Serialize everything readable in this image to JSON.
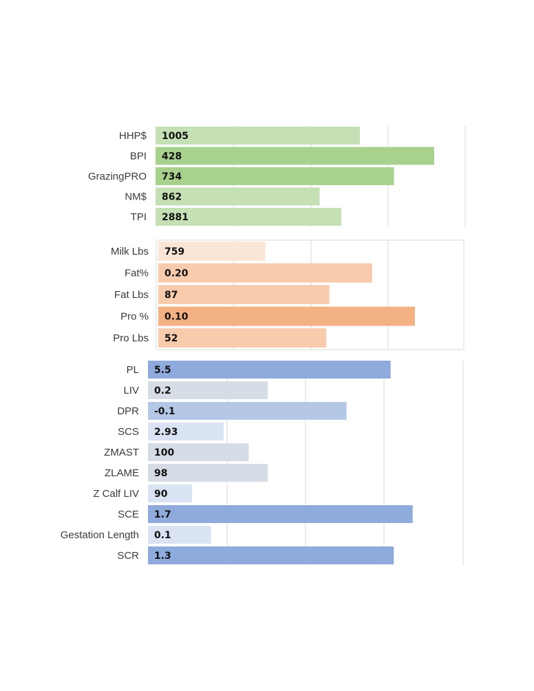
{
  "chart_data": [
    {
      "type": "bar",
      "orientation": "horizontal",
      "grid": true,
      "categories": [
        "HHP$",
        "BPI",
        "GrazingPRO",
        "NM$",
        "TPI"
      ],
      "values": [
        1005,
        428,
        734,
        862,
        2881
      ],
      "bar_length_fraction": [
        0.66,
        0.9,
        0.77,
        0.53,
        0.6
      ],
      "value_labels": [
        "1005",
        "428",
        "734",
        "862",
        "2881"
      ],
      "colors": [
        "#c5e0b4",
        "#a9d18e",
        "#a9d18e",
        "#c5e0b4",
        "#c5e0b4"
      ]
    },
    {
      "type": "bar",
      "orientation": "horizontal",
      "grid": true,
      "categories": [
        "Milk Lbs",
        "Fat%",
        "Fat Lbs",
        "Pro %",
        "Pro Lbs"
      ],
      "values": [
        759,
        0.2,
        87,
        0.1,
        52
      ],
      "bar_length_fraction": [
        0.35,
        0.7,
        0.56,
        0.84,
        0.55
      ],
      "value_labels": [
        "759",
        "0.20",
        "87",
        "0.10",
        "52"
      ],
      "colors": [
        "#fbe5d6",
        "#f8cbad",
        "#f8cbad",
        "#f4b183",
        "#f8cbad"
      ]
    },
    {
      "type": "bar",
      "orientation": "horizontal",
      "grid": true,
      "categories": [
        "PL",
        "LIV",
        "DPR",
        "SCS",
        "ZMAST",
        "ZLAME",
        "Z Calf LIV",
        "SCE",
        "Gestation Length",
        "SCR"
      ],
      "values": [
        5.5,
        0.2,
        -0.1,
        2.93,
        100,
        98,
        90,
        1.7,
        0.1,
        1.3
      ],
      "bar_length_fraction": [
        0.77,
        0.38,
        0.63,
        0.24,
        0.32,
        0.38,
        0.14,
        0.84,
        0.2,
        0.78
      ],
      "value_labels": [
        "5.5",
        "0.2",
        "-0.1",
        "2.93",
        "100",
        "98",
        "90",
        "1.7",
        "0.1",
        "1.3"
      ],
      "colors": [
        "#8faadc",
        "#d6dce5",
        "#b4c7e7",
        "#dae3f3",
        "#d6dce5",
        "#d6dce5",
        "#dae3f3",
        "#8faadc",
        "#dae3f3",
        "#8faadc"
      ]
    }
  ]
}
